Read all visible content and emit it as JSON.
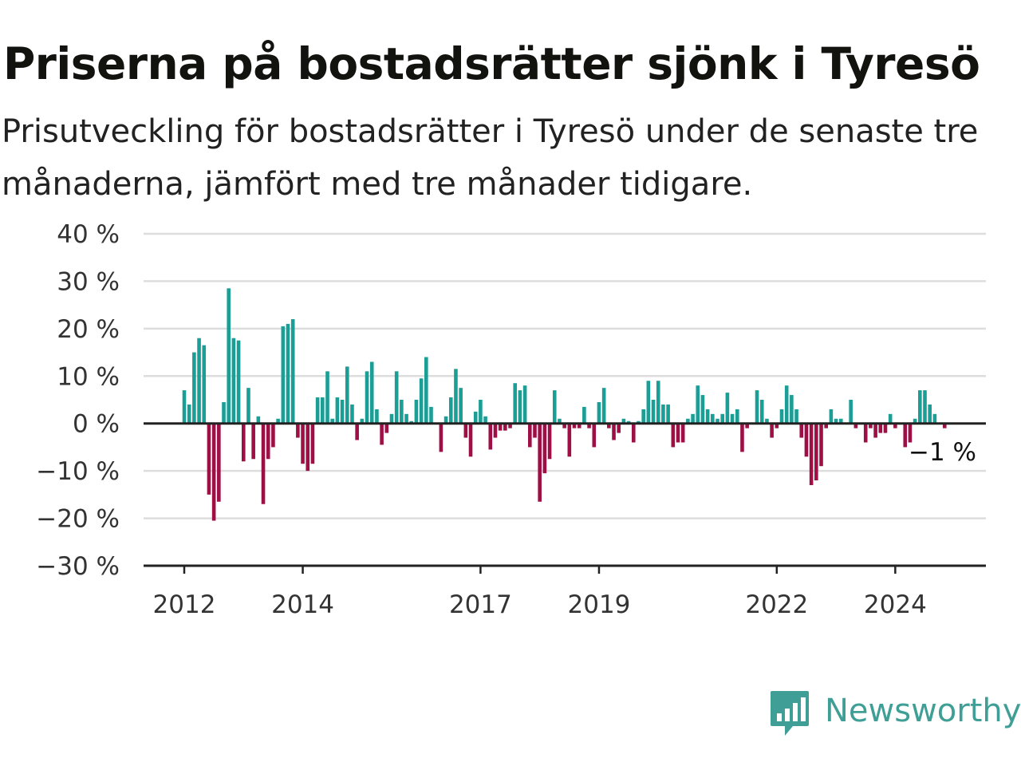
{
  "header": {
    "title": "Priserna på bostadsrätter sjönk i Tyresö",
    "subtitle": "Prisutveckling för bostadsrätter i Tyresö under de senaste tre månaderna, jämfört med tre månader tidigare."
  },
  "brand": {
    "name": "Newsworthy",
    "icon": "newsworthy-logo-icon",
    "color": "#3f9f96"
  },
  "colors": {
    "positive": "#1a9e95",
    "negative": "#9e1045",
    "grid": "#dddddd",
    "axis": "#222222"
  },
  "chart_data": {
    "type": "bar",
    "title": "Priserna på bostadsrätter sjönk i Tyresö",
    "subtitle": "Prisutveckling för bostadsrätter i Tyresö under de senaste tre månaderna, jämfört med tre månader tidigare.",
    "xlabel": "",
    "ylabel": "",
    "ylim": [
      -30,
      40
    ],
    "yticks": [
      40,
      30,
      20,
      10,
      0,
      -10,
      -20,
      -30
    ],
    "ytick_labels": [
      "40 %",
      "30 %",
      "20 %",
      "10 %",
      "0 %",
      "−10 %",
      "−20 %",
      "−30 %"
    ],
    "xticks": [
      "2012-01",
      "2014-01",
      "2017-01",
      "2019-01",
      "2022-01",
      "2024-01"
    ],
    "xtick_labels": [
      "2012",
      "2014",
      "2017",
      "2019",
      "2022",
      "2024"
    ],
    "grid": true,
    "last_value_label": "−1 %",
    "series": [
      {
        "start": "2012-01",
        "frequency": "monthly",
        "values": [
          7,
          4,
          15,
          18,
          16.5,
          -15,
          -20.5,
          -16.5,
          4.5,
          28.5,
          18,
          17.5,
          -8,
          7.5,
          -7.5,
          1.5,
          -17,
          -7.5,
          -5,
          1,
          20.5,
          21,
          22,
          -3,
          -8.5,
          -10,
          -8.5,
          5.5,
          5.5,
          11,
          1,
          5.5,
          5,
          12,
          4,
          -3.5,
          1,
          11,
          13,
          3,
          -4.5,
          -2,
          2,
          11,
          5,
          2,
          0.5,
          5,
          9.5,
          14,
          3.5,
          0,
          -6,
          1.5,
          5.5,
          11.5,
          7.5,
          -3,
          -7,
          2.5,
          5,
          1.5,
          -5.5,
          -3,
          -1.5,
          -1.5,
          -1,
          8.5,
          7,
          8,
          -5,
          -3,
          -16.5,
          -10.5,
          -7.5,
          7,
          1,
          -1,
          -7,
          -1,
          -1,
          3.5,
          -1,
          -5,
          4.5,
          7.5,
          -1,
          -3.5,
          -2,
          1,
          0.5,
          -4,
          0.5,
          3,
          9,
          5,
          9,
          4,
          4,
          -5,
          -4,
          -4,
          1,
          2,
          8,
          6,
          3,
          2,
          1,
          2,
          6.5,
          2,
          3,
          -6,
          -1,
          0,
          7,
          5,
          1,
          -3,
          -1,
          3,
          8,
          6,
          3,
          -3,
          -7,
          -13,
          -12,
          -9,
          -1,
          3,
          1,
          1,
          0,
          5,
          -1,
          0,
          -4,
          -1,
          -3,
          -2,
          -2,
          2,
          -1,
          0,
          -5,
          -4,
          1,
          7,
          7,
          4,
          2,
          0,
          -1
        ]
      }
    ]
  }
}
